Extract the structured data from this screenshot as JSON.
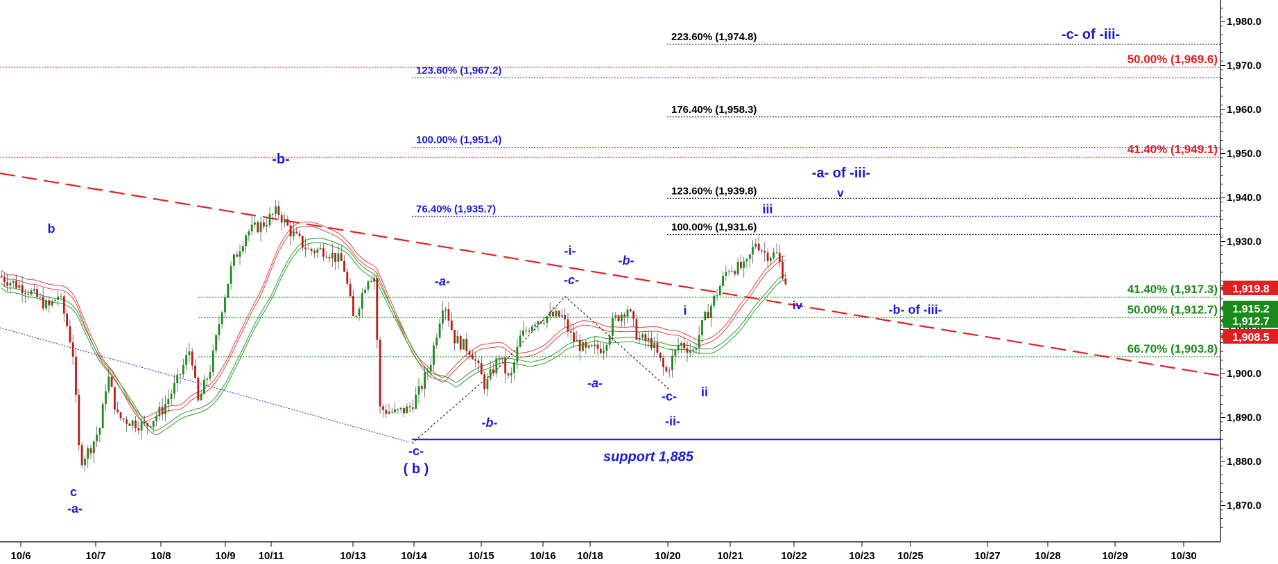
{
  "chart_data": {
    "type": "candlestick",
    "title": "",
    "ylim": [
      1862.5,
      1988
    ],
    "y_ticks": [
      {
        "value": 1980,
        "label": "1,980.0"
      },
      {
        "value": 1970,
        "label": "1,970.0"
      },
      {
        "value": 1960,
        "label": "1,960.0"
      },
      {
        "value": 1950,
        "label": "1,950.0"
      },
      {
        "value": 1940,
        "label": "1,940.0"
      },
      {
        "value": 1930,
        "label": "1,930.0"
      },
      {
        "value": 1920,
        "label": "1,920.0"
      },
      {
        "value": 1910,
        "label": "1,910.0"
      },
      {
        "value": 1900,
        "label": "1,900.0"
      },
      {
        "value": 1890,
        "label": "1,890.0"
      },
      {
        "value": 1880,
        "label": "1,880.0"
      },
      {
        "value": 1870,
        "label": "1,870.0"
      }
    ],
    "x_ticks": [
      "10/6",
      "10/7",
      "10/8",
      "10/9",
      "10/11",
      "10/13",
      "10/14",
      "10/15",
      "10/16",
      "10/18",
      "10/20",
      "10/21",
      "10/22",
      "10/23",
      "10/25",
      "10/27",
      "10/28",
      "10/29",
      "10/30"
    ],
    "grid": false,
    "price_badges": [
      {
        "label": "1,919.8",
        "value": 1919.8,
        "color": "#e02020"
      },
      {
        "label": "1,915.2",
        "value": 1915.2,
        "color": "#1a8a1a"
      },
      {
        "label": "1,912.7",
        "value": 1912.7,
        "color": "#1a8a1a"
      },
      {
        "label": "1,908.5",
        "value": 1908.5,
        "color": "#e02020"
      }
    ],
    "fib_levels": [
      {
        "label": "223.60% (1,974.8)",
        "value": 1974.8,
        "color": "#000000",
        "start": "10/21a"
      },
      {
        "label": "176.40% (1,958.3)",
        "value": 1958.3,
        "color": "#000000",
        "start": "10/21a"
      },
      {
        "label": "123.60% (1,939.8)",
        "value": 1939.8,
        "color": "#000000",
        "start": "10/21a"
      },
      {
        "label": "100.00% (1,931.6)",
        "value": 1931.6,
        "color": "#000000",
        "start": "10/21a"
      },
      {
        "label": "123.60% (1,967.2)",
        "value": 1967.2,
        "color": "#1a1ad0",
        "start": "10/14"
      },
      {
        "label": "100.00% (1,951.4)",
        "value": 1951.4,
        "color": "#1a1ad0",
        "start": "10/14"
      },
      {
        "label": "76.40% (1,935.7)",
        "value": 1935.7,
        "color": "#1a1ad0",
        "start": "10/14"
      },
      {
        "label": "50.00% (1,969.6)",
        "value": 1969.6,
        "color": "#e02020",
        "start": "left"
      },
      {
        "label": "41.40% (1,949.1)",
        "value": 1949.1,
        "color": "#e02020",
        "start": "left"
      },
      {
        "label": "41.40% (1,917.3)",
        "value": 1917.3,
        "color": "#1a8a1a",
        "start": "10/9"
      },
      {
        "label": "50.00% (1,912.7)",
        "value": 1912.7,
        "color": "#1a8a1a",
        "start": "10/9"
      },
      {
        "label": "66.70% (1,903.8)",
        "value": 1903.8,
        "color": "#1a8a1a",
        "start": "10/9"
      }
    ],
    "support": {
      "label": "support 1,885",
      "value": 1885
    },
    "trendline": {
      "from_value": 1945.5,
      "to_value": 1899.5,
      "color": "#e02020"
    },
    "wave_labels": [
      {
        "text": "b",
        "style": "upright"
      },
      {
        "text": "c",
        "style": "upright"
      },
      {
        "text": "-a-",
        "style": "upright"
      },
      {
        "text": "-b-",
        "style": "upright"
      },
      {
        "text": "-c-",
        "style": "upright"
      },
      {
        "text": "( b )",
        "style": "upright"
      },
      {
        "text": "-a-",
        "style": "italic"
      },
      {
        "text": "-b-",
        "style": "italic"
      },
      {
        "text": "-i-",
        "style": "upright"
      },
      {
        "text": "-c-",
        "style": "italic"
      },
      {
        "text": "-a-",
        "style": "italic"
      },
      {
        "text": "-b-",
        "style": "italic"
      },
      {
        "text": "-c-",
        "style": "upright"
      },
      {
        "text": "-ii-",
        "style": "upright"
      },
      {
        "text": "i",
        "style": "upright"
      },
      {
        "text": "ii",
        "style": "upright"
      },
      {
        "text": "iii",
        "style": "upright"
      },
      {
        "text": "iv",
        "style": "upright"
      },
      {
        "text": "v",
        "style": "upright"
      },
      {
        "text": "-a- of -iii-",
        "style": "upright"
      },
      {
        "text": "-b- of -iii-",
        "style": "upright"
      },
      {
        "text": "-c- of -iii-",
        "style": "upright"
      }
    ],
    "colors": {
      "up": "#1a8a1a",
      "down": "#c01818",
      "wave": "#1a1ad0",
      "axis": "#000000"
    }
  }
}
